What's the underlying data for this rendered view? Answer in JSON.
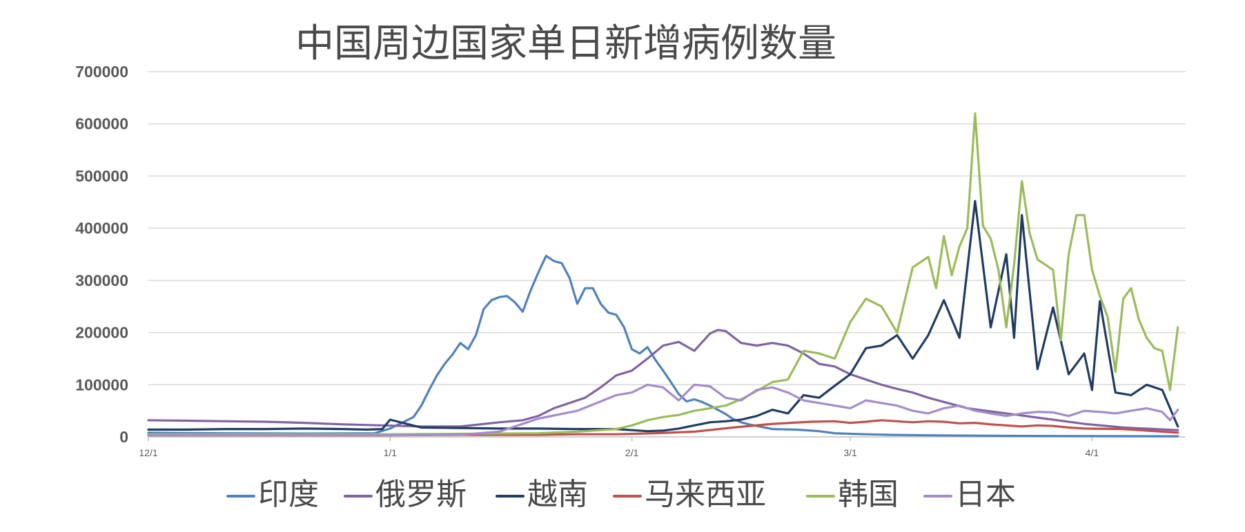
{
  "chart_data": {
    "type": "line",
    "title": "中国周边国家单日新增病例数量",
    "xlabel": "",
    "ylabel": "",
    "ylim": [
      0,
      700000
    ],
    "yticks": [
      0,
      100000,
      200000,
      300000,
      400000,
      500000,
      600000,
      700000
    ],
    "ytick_labels": [
      "0",
      "100000",
      "200000",
      "300000",
      "400000",
      "500000",
      "600000",
      "700000"
    ],
    "x_date_start": "12/1",
    "x_date_end": "4/10",
    "xtick_labels": [
      "12/1",
      "1/1",
      "2/1",
      "3/1",
      "4/1"
    ],
    "xticks": [
      0,
      31,
      62,
      90,
      121
    ],
    "grid": true,
    "legend_placement": "bottom",
    "series": [
      {
        "name": "印度",
        "color": "#4f81bd",
        "x": [
          0,
          10,
          20,
          29,
          31,
          34,
          35,
          36,
          37,
          38,
          39,
          40,
          41,
          42,
          43,
          44,
          45,
          46,
          47,
          48,
          49,
          50,
          51,
          52,
          53,
          54,
          55,
          56,
          57,
          58,
          59,
          60,
          61,
          62,
          63,
          64,
          65,
          66,
          67,
          68,
          69,
          70,
          71,
          72,
          73,
          74,
          75,
          76,
          77,
          78,
          80,
          83,
          86,
          88,
          90,
          92,
          95,
          100,
          110,
          120,
          132
        ],
        "y": [
          8000,
          7000,
          6500,
          7000,
          16000,
          38000,
          60000,
          90000,
          118000,
          140000,
          158000,
          180000,
          168000,
          195000,
          245000,
          262000,
          268000,
          270000,
          258000,
          240000,
          280000,
          315000,
          347000,
          337000,
          333000,
          305000,
          255000,
          285000,
          285000,
          255000,
          238000,
          234000,
          210000,
          168000,
          160000,
          172000,
          148000,
          127000,
          105000,
          82000,
          68000,
          72000,
          67000,
          60000,
          52000,
          44000,
          34000,
          28000,
          24000,
          21000,
          15000,
          14000,
          11000,
          7000,
          6000,
          5000,
          4000,
          3000,
          2000,
          1500,
          1200
        ]
      },
      {
        "name": "俄罗斯",
        "color": "#8064a2",
        "x": [
          0,
          5,
          10,
          15,
          20,
          25,
          30,
          35,
          40,
          45,
          48,
          50,
          52,
          54,
          56,
          58,
          60,
          62,
          64,
          66,
          68,
          70,
          72,
          73,
          74,
          76,
          78,
          80,
          82,
          84,
          86,
          88,
          90,
          92,
          94,
          96,
          98,
          100,
          105,
          110,
          115,
          120,
          125,
          132
        ],
        "y": [
          32000,
          31000,
          30000,
          29000,
          27000,
          24000,
          22000,
          20000,
          20000,
          28000,
          32000,
          40000,
          55000,
          65000,
          75000,
          95000,
          118000,
          127000,
          150000,
          175000,
          182000,
          165000,
          198000,
          205000,
          203000,
          180000,
          175000,
          180000,
          175000,
          160000,
          140000,
          135000,
          120000,
          110000,
          100000,
          92000,
          85000,
          75000,
          55000,
          45000,
          35000,
          25000,
          18000,
          13000
        ]
      },
      {
        "name": "越南",
        "color": "#1f3c64",
        "x": [
          0,
          5,
          10,
          15,
          20,
          25,
          28,
          30,
          31,
          35,
          40,
          45,
          50,
          55,
          60,
          62,
          64,
          66,
          68,
          70,
          72,
          74,
          76,
          78,
          80,
          82,
          84,
          86,
          88,
          90,
          92,
          94,
          96,
          98,
          100,
          102,
          104,
          106,
          108,
          110,
          111,
          112,
          114,
          116,
          118,
          120,
          121,
          122,
          124,
          126,
          128,
          130,
          132
        ],
        "y": [
          14000,
          14000,
          15000,
          15000,
          16000,
          15000,
          14000,
          15000,
          33000,
          18000,
          17000,
          16000,
          16000,
          15000,
          15000,
          13000,
          11000,
          12000,
          16000,
          22000,
          28000,
          30000,
          33000,
          40000,
          52000,
          45000,
          80000,
          75000,
          98000,
          120000,
          170000,
          175000,
          195000,
          150000,
          195000,
          262000,
          190000,
          452000,
          210000,
          350000,
          190000,
          425000,
          130000,
          248000,
          120000,
          160000,
          90000,
          260000,
          85000,
          80000,
          100000,
          90000,
          20000
        ]
      },
      {
        "name": "马来西亚",
        "color": "#c0504d",
        "x": [
          0,
          10,
          20,
          30,
          40,
          50,
          55,
          60,
          65,
          70,
          75,
          80,
          85,
          88,
          90,
          92,
          94,
          96,
          98,
          100,
          102,
          104,
          106,
          108,
          110,
          112,
          114,
          116,
          118,
          120,
          125,
          132
        ],
        "y": [
          3000,
          3000,
          3000,
          3000,
          4000,
          4000,
          5000,
          5000,
          7000,
          10000,
          18000,
          25000,
          29000,
          30000,
          27000,
          29000,
          32000,
          30000,
          28000,
          30000,
          29000,
          26000,
          27000,
          24000,
          22000,
          20000,
          22000,
          21000,
          18000,
          16000,
          15000,
          8000
        ]
      },
      {
        "name": "韩国",
        "color": "#9bbb59",
        "x": [
          0,
          30,
          40,
          50,
          55,
          60,
          62,
          64,
          66,
          68,
          70,
          72,
          74,
          76,
          78,
          80,
          82,
          84,
          86,
          88,
          90,
          92,
          94,
          96,
          98,
          100,
          101,
          102,
          103,
          104,
          105,
          106,
          107,
          108,
          109,
          110,
          111,
          112,
          113,
          114,
          115,
          116,
          117,
          118,
          119,
          120,
          121,
          122,
          123,
          124,
          125,
          126,
          127,
          128,
          129,
          130,
          131,
          132
        ],
        "y": [
          5000,
          5000,
          6000,
          7000,
          10000,
          15000,
          22000,
          32000,
          38000,
          42000,
          50000,
          55000,
          60000,
          72000,
          88000,
          105000,
          110000,
          165000,
          160000,
          150000,
          220000,
          265000,
          250000,
          200000,
          325000,
          345000,
          285000,
          385000,
          310000,
          365000,
          400000,
          620000,
          405000,
          380000,
          320000,
          210000,
          330000,
          490000,
          390000,
          340000,
          330000,
          320000,
          185000,
          350000,
          425000,
          425000,
          320000,
          270000,
          230000,
          125000,
          265000,
          285000,
          225000,
          190000,
          170000,
          165000,
          90000,
          210000
        ]
      },
      {
        "name": "日本",
        "color": "#a58cc9",
        "x": [
          0,
          30,
          40,
          45,
          50,
          55,
          60,
          62,
          64,
          66,
          68,
          70,
          72,
          74,
          76,
          78,
          80,
          82,
          84,
          86,
          88,
          90,
          92,
          94,
          96,
          98,
          100,
          102,
          104,
          106,
          108,
          110,
          112,
          114,
          116,
          118,
          120,
          122,
          124,
          126,
          128,
          130,
          131,
          132
        ],
        "y": [
          3000,
          3000,
          4000,
          10000,
          35000,
          50000,
          80000,
          85000,
          100000,
          95000,
          70000,
          100000,
          97000,
          75000,
          70000,
          90000,
          95000,
          85000,
          70000,
          65000,
          60000,
          55000,
          70000,
          65000,
          60000,
          50000,
          45000,
          55000,
          60000,
          50000,
          45000,
          40000,
          45000,
          48000,
          47000,
          40000,
          50000,
          48000,
          45000,
          50000,
          55000,
          48000,
          32000,
          52000
        ]
      }
    ]
  }
}
